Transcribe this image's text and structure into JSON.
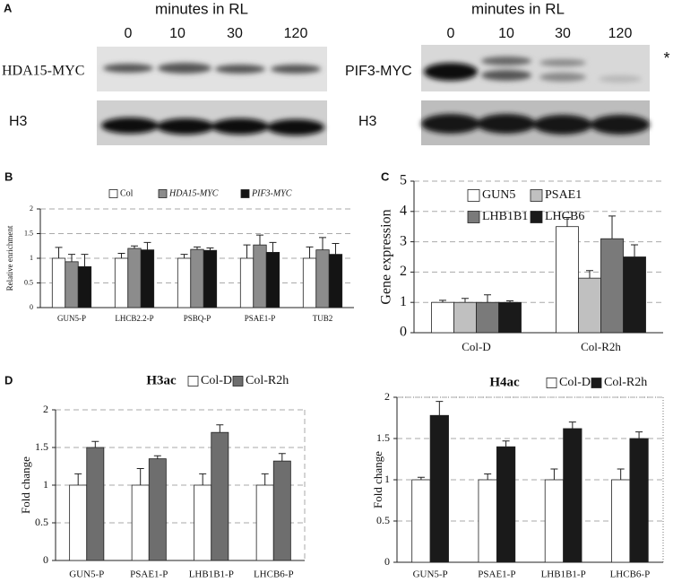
{
  "figure": {
    "blots": {
      "panel_label": "A",
      "left": {
        "heading": "minutes in RL",
        "times": [
          "0",
          "10",
          "30",
          "120"
        ],
        "rows": [
          "HDA15-MYC",
          "H3"
        ]
      },
      "right": {
        "heading": "minutes in RL",
        "times": [
          "0",
          "10",
          "30",
          "120"
        ],
        "rows": [
          "PIF3-MYC",
          "H3"
        ],
        "note": "*"
      }
    }
  },
  "chart_data": [
    {
      "type": "bar",
      "panel_label": "B",
      "ylabel": "Relative enrichment",
      "categories": [
        "GUN5-P",
        "LHCB2.2-P",
        "PSBQ-P",
        "PSAE1-P",
        "TUB2"
      ],
      "series": [
        {
          "name": "Col",
          "color": "#ffffff",
          "values": [
            1,
            1,
            1,
            1,
            1
          ],
          "errors": [
            0.22,
            0.1,
            0.08,
            0.27,
            0.23
          ]
        },
        {
          "name": "HDA15-MYC",
          "color": "#8c8c8c",
          "values": [
            0.93,
            1.2,
            1.18,
            1.27,
            1.17
          ],
          "errors": [
            0.15,
            0.05,
            0.05,
            0.2,
            0.25
          ]
        },
        {
          "name": "PIF3-MYC",
          "color": "#141414",
          "values": [
            0.83,
            1.17,
            1.16,
            1.12,
            1.08
          ],
          "errors": [
            0.25,
            0.15,
            0.05,
            0.2,
            0.22
          ]
        }
      ],
      "ylim": [
        0,
        2
      ],
      "yticks": [
        0,
        0.5,
        1,
        1.5,
        2
      ],
      "grid": true,
      "legend": "top"
    },
    {
      "type": "bar",
      "panel_label": "C",
      "ylabel": "Gene expression",
      "categories": [
        "Col-D",
        "Col-R2h"
      ],
      "series": [
        {
          "name": "GUN5",
          "color": "#ffffff",
          "values": [
            1,
            3.5
          ],
          "errors": [
            0.07,
            0.3
          ]
        },
        {
          "name": "PSAE1",
          "color": "#c0c0c0",
          "values": [
            1,
            1.8
          ],
          "errors": [
            0.13,
            0.25
          ]
        },
        {
          "name": "LHB1B1",
          "color": "#7a7a7a",
          "values": [
            1,
            3.1
          ],
          "errors": [
            0.25,
            0.75
          ]
        },
        {
          "name": "LHCB6",
          "color": "#1a1a1a",
          "values": [
            1,
            2.5
          ],
          "errors": [
            0.05,
            0.4
          ]
        }
      ],
      "ylim": [
        0,
        5
      ],
      "yticks": [
        0,
        1,
        2,
        3,
        4,
        5
      ],
      "grid": true,
      "legend": "upper left"
    },
    {
      "type": "bar",
      "panel_label": "D",
      "title": "H3ac",
      "ylabel": "Fold change",
      "categories": [
        "GUN5-P",
        "PSAE1-P",
        "LHB1B1-P",
        "LHCB6-P"
      ],
      "series": [
        {
          "name": "Col-D",
          "color": "#ffffff",
          "values": [
            1,
            1,
            1,
            1
          ],
          "errors": [
            0.15,
            0.22,
            0.15,
            0.15
          ]
        },
        {
          "name": "Col-R2h",
          "color": "#6e6e6e",
          "values": [
            1.5,
            1.35,
            1.7,
            1.32
          ],
          "errors": [
            0.08,
            0.04,
            0.1,
            0.1
          ]
        }
      ],
      "ylim": [
        0,
        2
      ],
      "yticks": [
        0,
        0.5,
        1,
        1.5,
        2
      ],
      "grid": true,
      "legend": "top"
    },
    {
      "type": "bar",
      "title": "H4ac",
      "ylabel": "Fold change",
      "categories": [
        "GUN5-P",
        "PSAE1-P",
        "LHB1B1-P",
        "LHCB6-P"
      ],
      "series": [
        {
          "name": "Col-D",
          "color": "#ffffff",
          "values": [
            1,
            1,
            1,
            1
          ],
          "errors": [
            0.03,
            0.07,
            0.13,
            0.13
          ]
        },
        {
          "name": "Col-R2h",
          "color": "#1a1a1a",
          "values": [
            1.78,
            1.4,
            1.62,
            1.5
          ],
          "errors": [
            0.17,
            0.07,
            0.08,
            0.08
          ]
        }
      ],
      "ylim": [
        0,
        2
      ],
      "yticks": [
        0,
        0.5,
        1,
        1.5,
        2
      ],
      "grid": true,
      "legend": "top"
    }
  ]
}
